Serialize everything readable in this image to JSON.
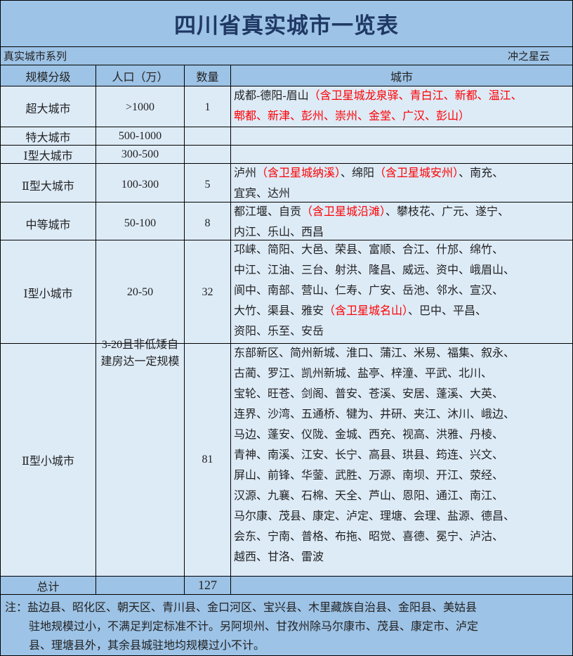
{
  "title": "四川省真实城市一览表",
  "subtitle_left": "真实城市系列",
  "subtitle_right": "冲之星云",
  "headers": [
    "规模分级",
    "人口（万）",
    "数量",
    "城市"
  ],
  "colors": {
    "header_bg": "#9dc3e6",
    "body_bg": "#ddebf7",
    "title": "#1f3864",
    "highlight": "#ff0000"
  },
  "rows": [
    {
      "level": "超大城市",
      "population": ">1000",
      "count": "1",
      "cities": [
        [
          {
            "t": "成都-德阳-眉山"
          },
          {
            "t": "（含卫星城龙泉驿、青白江、新都、温江、",
            "red": true
          }
        ],
        [
          {
            "t": "郫都、新津、彭州、崇州、金堂、广汉、彭山）",
            "red": true
          }
        ]
      ]
    },
    {
      "level": "特大城市",
      "population": "500-1000",
      "count": "",
      "cities": []
    },
    {
      "level": "Ⅰ型大城市",
      "population": "300-500",
      "count": "",
      "cities": []
    },
    {
      "level": "Ⅱ型大城市",
      "population": "100-300",
      "count": "5",
      "cities": [
        [
          {
            "t": "泸州"
          },
          {
            "t": "（含卫星城纳溪）",
            "red": true
          },
          {
            "t": "、绵阳"
          },
          {
            "t": "（含卫星城安州）",
            "red": true
          },
          {
            "t": "、南充、"
          }
        ],
        [
          {
            "t": "宜宾、达州"
          }
        ]
      ]
    },
    {
      "level": "中等城市",
      "population": "50-100",
      "count": "8",
      "cities": [
        [
          {
            "t": "都江堰、自贡"
          },
          {
            "t": "（含卫星城沿滩）",
            "red": true
          },
          {
            "t": "、攀枝花、广元、遂宁、"
          }
        ],
        [
          {
            "t": "内江、乐山、西昌"
          }
        ]
      ]
    },
    {
      "level": "Ⅰ型小城市",
      "population": "20-50",
      "count": "32",
      "cities": [
        [
          {
            "t": "邛崃、简阳、大邑、荣县、富顺、合江、什邡、绵竹、"
          }
        ],
        [
          {
            "t": "中江、江油、三台、射洪、隆昌、威远、资中、峨眉山、"
          }
        ],
        [
          {
            "t": "阆中、南部、营山、仁寿、广安、岳池、邻水、宣汉、"
          }
        ],
        [
          {
            "t": "大竹、渠县、雅安"
          },
          {
            "t": "（含卫星城名山）",
            "red": true
          },
          {
            "t": "、巴中、平昌、"
          }
        ],
        [
          {
            "t": "资阳、乐至、安岳"
          }
        ]
      ]
    },
    {
      "level": "Ⅱ型小城市",
      "population": "3-20且非低矮自建房达一定规模",
      "count": "81",
      "cities": [
        [
          {
            "t": "东部新区、简州新城、淮口、蒲江、米易、福集、叙永、"
          }
        ],
        [
          {
            "t": "古蔺、罗江、凯州新城、盐亭、梓潼、平武、北川、"
          }
        ],
        [
          {
            "t": "宝轮、旺苍、剑阁、普安、苍溪、安居、蓬溪、大英、"
          }
        ],
        [
          {
            "t": "连界、沙湾、五通桥、犍为、井研、夹江、沐川、峨边、"
          }
        ],
        [
          {
            "t": "马边、蓬安、仪陇、金城、西充、视高、洪雅、丹棱、"
          }
        ],
        [
          {
            "t": "青神、南溪、江安、长宁、高县、珙县、筠连、兴文、"
          }
        ],
        [
          {
            "t": "屏山、前锋、华蓥、武胜、万源、南坝、开江、荥经、"
          }
        ],
        [
          {
            "t": "汉源、九襄、石棉、天全、芦山、恩阳、通江、南江、"
          }
        ],
        [
          {
            "t": "马尔康、茂县、康定、泸定、理塘、会理、盐源、德昌、"
          }
        ],
        [
          {
            "t": "会东、宁南、普格、布拖、昭觉、喜德、冕宁、泸沽、"
          }
        ],
        [
          {
            "t": "越西、甘洛、雷波"
          }
        ]
      ]
    }
  ],
  "total": {
    "label": "总计",
    "population": "",
    "count": "127",
    "cities": ""
  },
  "note": {
    "line1": "注：盐边县、昭化区、朝天区、青川县、金口河区、宝兴县、木里藏族自治县、金阳县、美姑县",
    "line2": "驻地规模过小，不满足判定标准不计。另阿坝州、甘孜州除马尔康市、茂县、康定市、泸定",
    "line3": "县、理塘县外，其余县城驻地均规模过小不计。"
  }
}
